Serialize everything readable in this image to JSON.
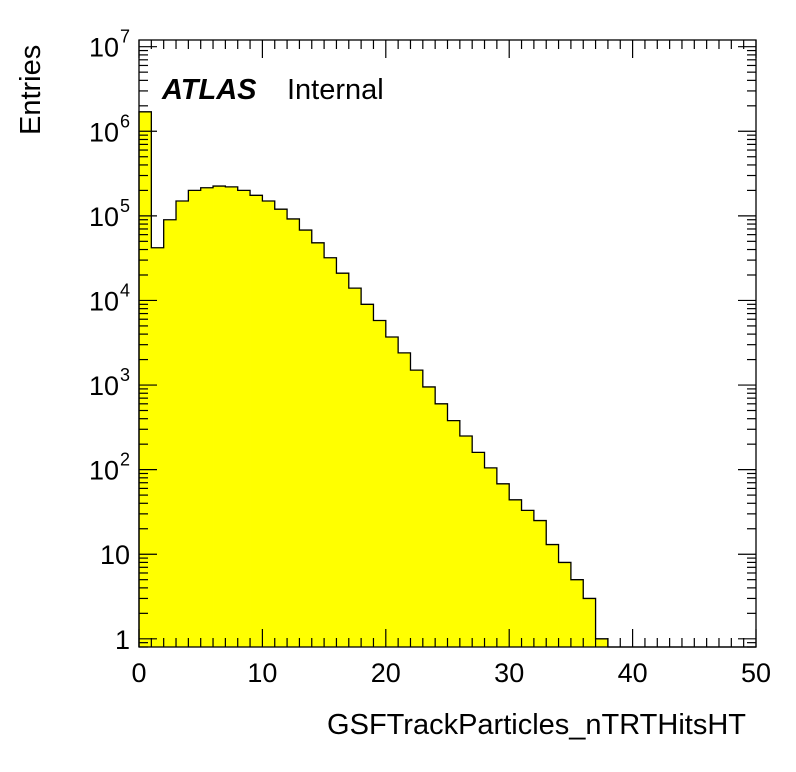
{
  "chart_data": {
    "type": "bar",
    "title": "",
    "xlabel": "GSFTrackParticles_nTRTHitsHT",
    "ylabel": "Entries",
    "label_bold": "ATLAS",
    "label_normal": "Internal",
    "xlim": [
      0,
      50
    ],
    "ylim": [
      0.8,
      12000000
    ],
    "yscale": "log",
    "bin_width": 1,
    "x_ticks": [
      0,
      10,
      20,
      30,
      40,
      50
    ],
    "y_ticks": [
      {
        "value": 1,
        "base": "1",
        "exp": ""
      },
      {
        "value": 10,
        "base": "10",
        "exp": ""
      },
      {
        "value": 100,
        "base": "10",
        "exp": "2"
      },
      {
        "value": 1000,
        "base": "10",
        "exp": "3"
      },
      {
        "value": 10000,
        "base": "10",
        "exp": "4"
      },
      {
        "value": 100000,
        "base": "10",
        "exp": "5"
      },
      {
        "value": 1000000,
        "base": "10",
        "exp": "6"
      },
      {
        "value": 10000000,
        "base": "10",
        "exp": "7"
      }
    ],
    "fill_color": "#ffff00",
    "line_color": "#000000",
    "grid": false,
    "values": [
      1700000,
      42000,
      90000,
      150000,
      200000,
      215000,
      225000,
      220000,
      200000,
      175000,
      150000,
      120000,
      92000,
      68000,
      48000,
      32000,
      21000,
      14000,
      9000,
      5800,
      3700,
      2400,
      1500,
      950,
      600,
      380,
      250,
      160,
      105,
      68,
      44,
      33,
      25,
      13,
      8,
      5,
      3,
      1,
      0,
      0,
      0,
      0,
      0,
      0,
      0,
      0,
      0,
      0,
      0,
      0
    ]
  }
}
